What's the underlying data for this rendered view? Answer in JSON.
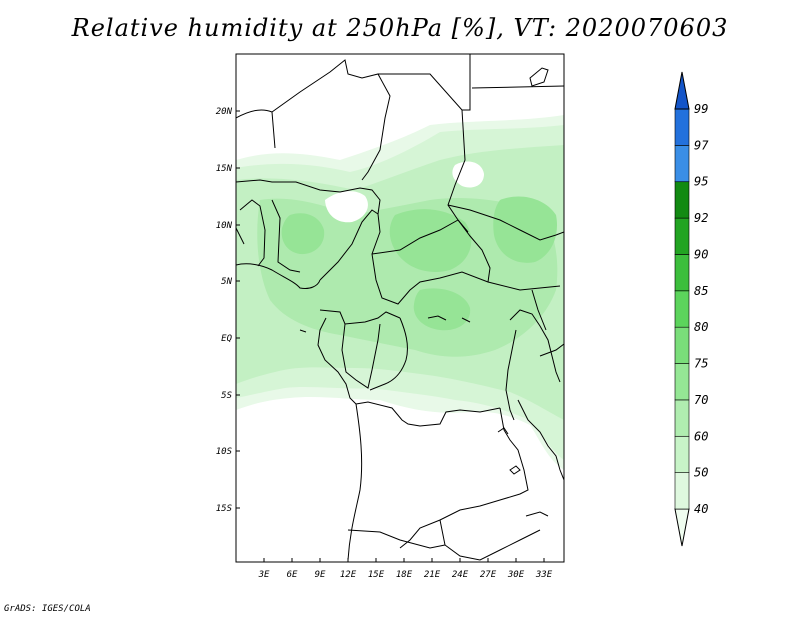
{
  "title": "Relative humidity at 250hPa [%], VT: 2020070603",
  "credit": "GrADS: IGES/COLA",
  "map": {
    "lat_ticks": [
      "20N",
      "15N",
      "10N",
      "5N",
      "EQ",
      "5S",
      "10S",
      "15S"
    ],
    "lon_ticks": [
      "3E",
      "6E",
      "9E",
      "12E",
      "15E",
      "18E",
      "21E",
      "24E",
      "27E",
      "30E",
      "33E"
    ]
  },
  "colorbar": {
    "levels": [
      "40",
      "50",
      "60",
      "70",
      "75",
      "80",
      "85",
      "90",
      "92",
      "95",
      "97",
      "99"
    ],
    "colors": [
      "#f0fdf0",
      "#dff8df",
      "#c8f4c8",
      "#b0edb0",
      "#95e795",
      "#7ade7a",
      "#5cd45c",
      "#3cbe3c",
      "#22a422",
      "#128a12",
      "#3a8ee6",
      "#2371dc",
      "#1455c8"
    ]
  },
  "chart_data": {
    "type": "heatmap",
    "title": "Relative humidity at 250hPa [%], VT: 2020070603",
    "variable": "Relative humidity",
    "level": "250hPa",
    "units": "%",
    "valid_time": "2020070603",
    "contour_levels": [
      40,
      50,
      60,
      70,
      75,
      80,
      85,
      90,
      92,
      95,
      97,
      99
    ],
    "lon_range": [
      0,
      35
    ],
    "lat_range": [
      -20,
      25
    ]
  }
}
